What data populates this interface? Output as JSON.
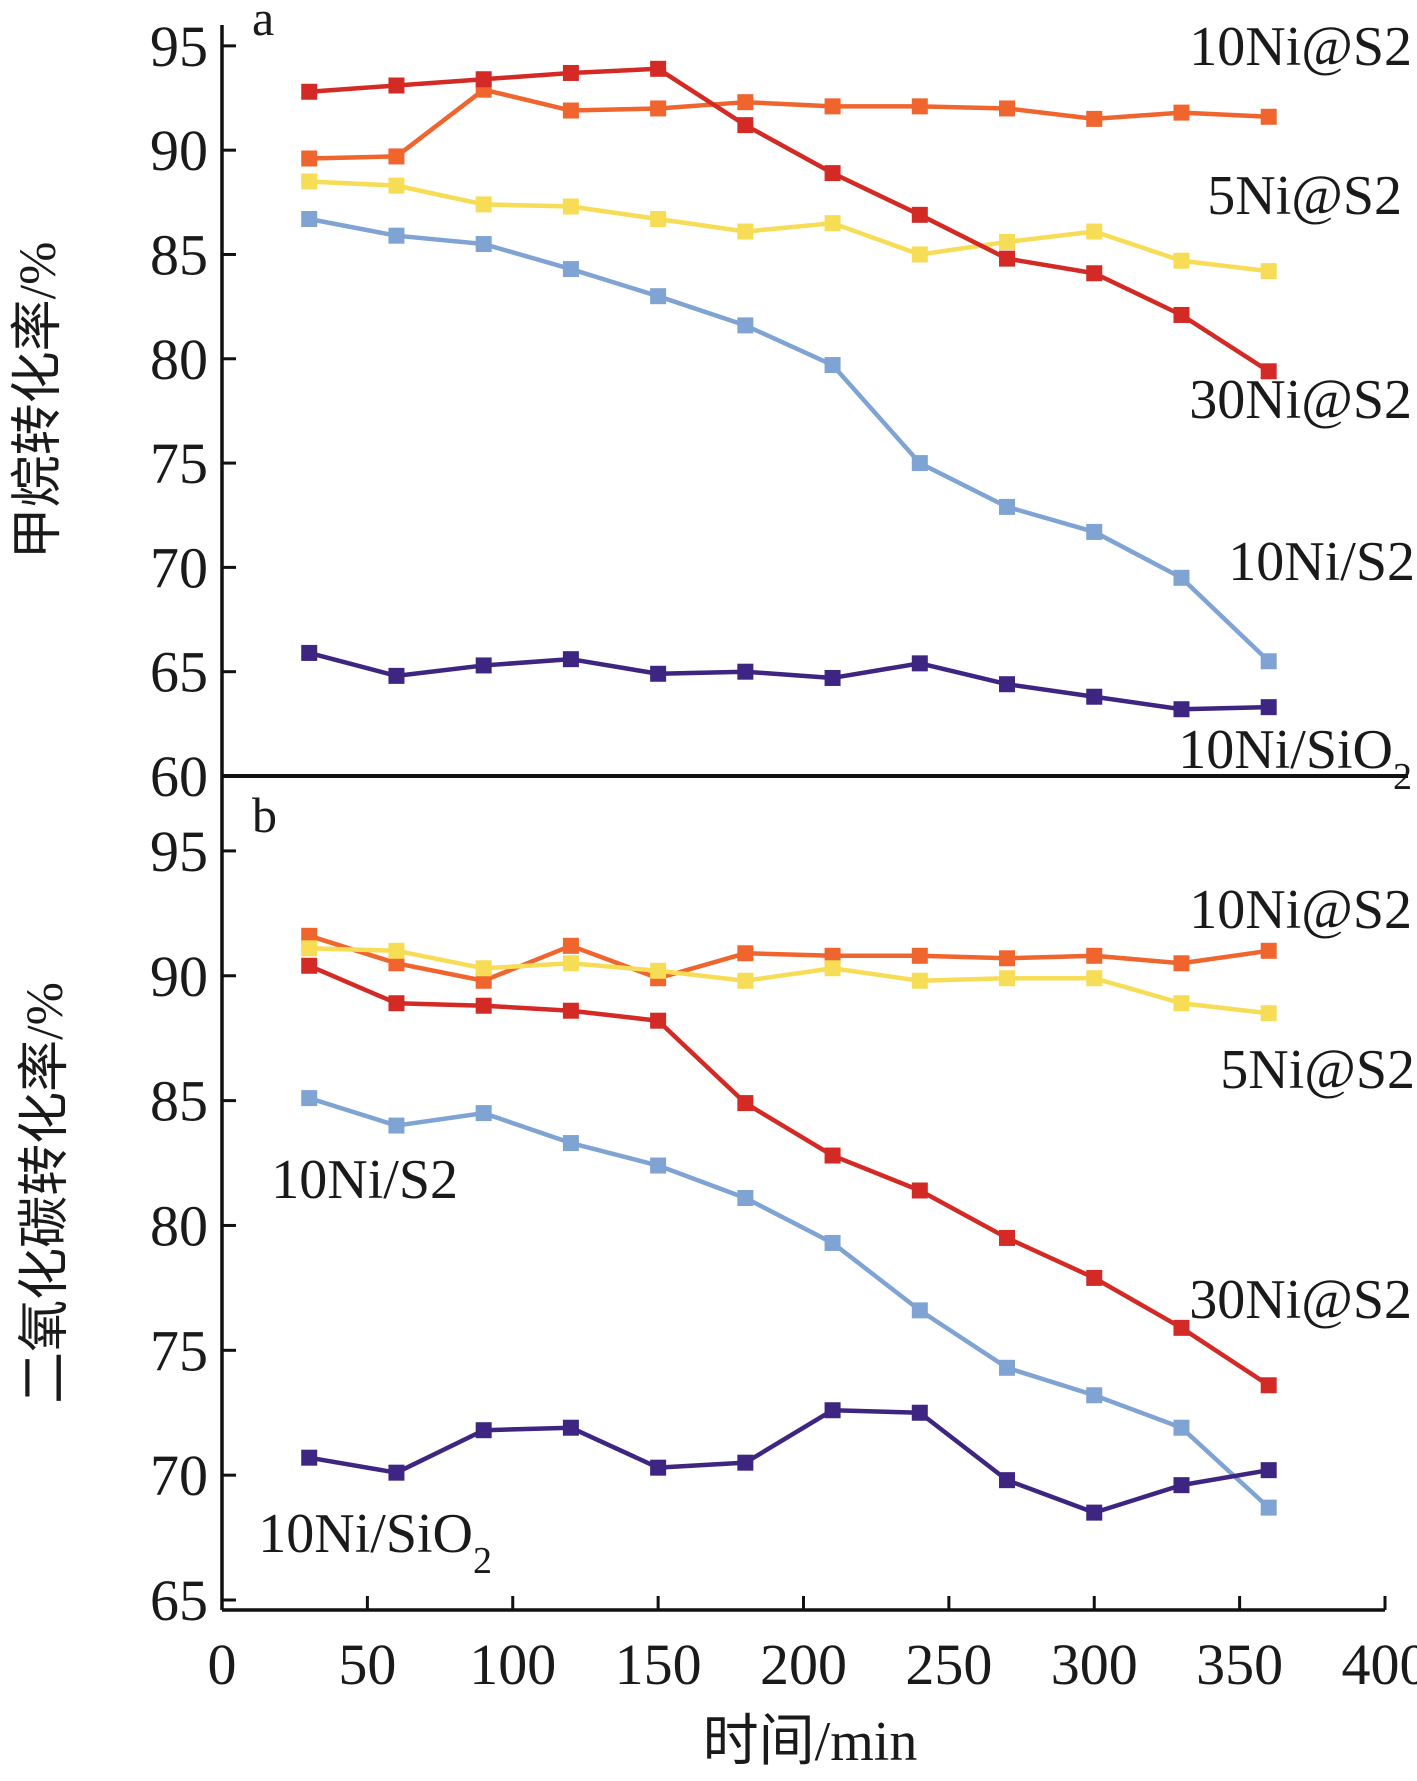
{
  "chart_data": [
    {
      "panel_label": "a",
      "type": "line",
      "ylabel": "甲烷转化率/%",
      "ylim": [
        60,
        96
      ],
      "yticks": [
        95,
        90,
        85,
        80,
        75,
        70,
        65,
        60
      ],
      "x": [
        30,
        60,
        90,
        120,
        150,
        180,
        210,
        240,
        270,
        300,
        330,
        360
      ],
      "series": [
        {
          "name": "10Ni@S2",
          "color": "#f0642d",
          "values": [
            89.6,
            89.7,
            92.9,
            91.9,
            92.0,
            92.3,
            92.1,
            92.1,
            92.0,
            91.5,
            91.8,
            91.6
          ]
        },
        {
          "name": "5Ni@S2",
          "color": "#f7dc55",
          "values": [
            88.5,
            88.3,
            87.4,
            87.3,
            86.7,
            86.1,
            86.5,
            85.0,
            85.6,
            86.1,
            84.7,
            84.2
          ]
        },
        {
          "name": "30Ni@S2",
          "color": "#d42a26",
          "values": [
            92.8,
            93.1,
            93.4,
            93.7,
            93.9,
            91.2,
            88.9,
            86.9,
            84.8,
            84.1,
            82.1,
            79.4
          ]
        },
        {
          "name": "10Ni/S2",
          "color": "#7fa3d3",
          "values": [
            86.7,
            85.9,
            85.5,
            84.3,
            83.0,
            81.6,
            79.7,
            75.0,
            72.9,
            71.7,
            69.5,
            65.5
          ]
        },
        {
          "name": "10Ni/SiO",
          "name_sub": "2",
          "color": "#3d2581",
          "values": [
            65.9,
            64.8,
            65.3,
            65.6,
            64.9,
            65.0,
            64.7,
            65.4,
            64.4,
            63.8,
            63.2,
            63.3
          ]
        }
      ]
    },
    {
      "panel_label": "b",
      "type": "line",
      "ylabel": "二氧化碳转化率/%",
      "ylim": [
        64.6,
        98
      ],
      "yticks": [
        95,
        90,
        85,
        80,
        75,
        70,
        65
      ],
      "xlabel": "时间/min",
      "xlim": [
        0,
        400
      ],
      "xticks": [
        0,
        50,
        100,
        150,
        200,
        250,
        300,
        350,
        400
      ],
      "x": [
        30,
        60,
        90,
        120,
        150,
        180,
        210,
        240,
        270,
        300,
        330,
        360
      ],
      "series": [
        {
          "name": "10Ni@S2",
          "color": "#f0642d",
          "values": [
            91.6,
            90.5,
            89.8,
            91.2,
            89.9,
            90.9,
            90.8,
            90.8,
            90.7,
            90.8,
            90.5,
            91.0
          ]
        },
        {
          "name": "5Ni@S2",
          "color": "#f7dc55",
          "values": [
            91.1,
            91.0,
            90.3,
            90.5,
            90.2,
            89.8,
            90.3,
            89.8,
            89.9,
            89.9,
            88.9,
            88.5
          ]
        },
        {
          "name": "30Ni@S2",
          "color": "#d42a26",
          "values": [
            90.4,
            88.9,
            88.8,
            88.6,
            88.2,
            84.9,
            82.8,
            81.4,
            79.5,
            77.9,
            75.9,
            73.6
          ]
        },
        {
          "name": "10Ni/S2",
          "color": "#7fa3d3",
          "values": [
            85.1,
            84.0,
            84.5,
            83.3,
            82.4,
            81.1,
            79.3,
            76.6,
            74.3,
            73.2,
            71.9,
            68.7
          ]
        },
        {
          "name": "10Ni/SiO",
          "name_sub": "2",
          "color": "#3d2581",
          "values": [
            70.7,
            70.1,
            71.8,
            71.9,
            70.3,
            70.5,
            72.6,
            72.5,
            69.8,
            68.5,
            69.6,
            70.2
          ]
        }
      ]
    }
  ]
}
